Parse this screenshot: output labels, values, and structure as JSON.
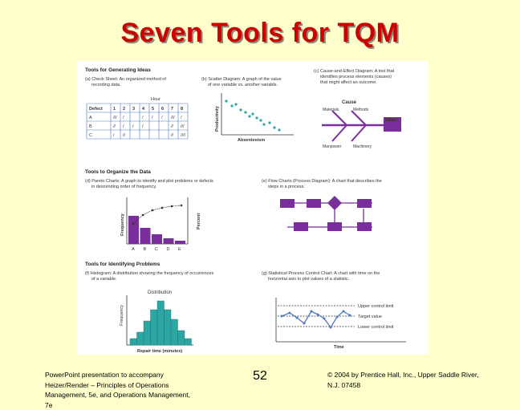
{
  "slide": {
    "title": "Seven Tools for TQM",
    "number": "52",
    "footer_left": [
      "PowerPoint presentation to accompany",
      "Heizer/Render – Principles of Operations",
      "Management, 5e, and Operations Management,",
      "7e"
    ],
    "footer_right": [
      "© 2004 by Prentice Hall, Inc., Upper Saddle River,",
      "N.J. 07458"
    ]
  },
  "colors": {
    "title": "#CC0000",
    "background": "#FFFFCC",
    "accent_teal": "#2BA6A3",
    "accent_purple": "#7A2E9C",
    "accent_blue": "#4A78C4"
  },
  "figure": {
    "section_generating": "Tools for Generating Ideas",
    "section_organizing": "Tools to Organize the Data",
    "section_identifying": "Tools for Identifying Problems",
    "check_sheet": {
      "caption_a": "(a) Check Sheet: An organized method of",
      "caption_b": "recording data.",
      "hour_label": "Hour",
      "header": [
        "Defect",
        "1",
        "2",
        "3",
        "4",
        "5",
        "6",
        "7",
        "8"
      ],
      "rows": [
        [
          "A",
          "///",
          "/",
          "",
          "/",
          "/",
          "/",
          "///",
          "/"
        ],
        [
          "B",
          "//",
          "/",
          "/",
          "/",
          "",
          "",
          "//",
          "///"
        ],
        [
          "C",
          "/",
          "//",
          "",
          "",
          "",
          "",
          "//",
          "////"
        ]
      ]
    },
    "scatter": {
      "caption_a": "(b) Scatter Diagram: A graph of the value",
      "caption_b": "of one variable vs. another variable.",
      "ylabel": "Productivity",
      "xlabel": "Absenteeism"
    },
    "cause_effect": {
      "caption_a": "(c) Cause-and-Effect Diagram: A tool that",
      "caption_b": "identifies process elements (causes)",
      "caption_c": "that might affect an outcome.",
      "cause_label": "Cause",
      "effect_label": "Effect",
      "bones": [
        "Materials",
        "Methods",
        "Manpower",
        "Machinery"
      ]
    },
    "pareto": {
      "caption_a": "(d) Pareto Charts: A graph to identify and plot problems or defects",
      "caption_b": "in descending order of frequency.",
      "ylabel_left": "Frequency",
      "ylabel_right": "Percent",
      "categories": [
        "A",
        "B",
        "C",
        "D",
        "E"
      ]
    },
    "flow": {
      "caption_a": "(e) Flow Charts (Process Diagram): A chart that describes the",
      "caption_b": "steps in a process."
    },
    "histogram": {
      "caption_a": "(f) Histogram: A distribution showing the frequency of occurrences",
      "caption_b": "of a variable.",
      "title": "Distribution",
      "ylabel": "Frequency",
      "xlabel": "Repair time (minutes)"
    },
    "spc": {
      "caption_a": "(g) Statistical Process Control Chart: A chart with time on the",
      "caption_b": "horizontal axis to plot values of a statistic.",
      "ucl": "Upper control limit",
      "target": "Target value",
      "lcl": "Lower control limit",
      "xlabel": "Time"
    }
  }
}
